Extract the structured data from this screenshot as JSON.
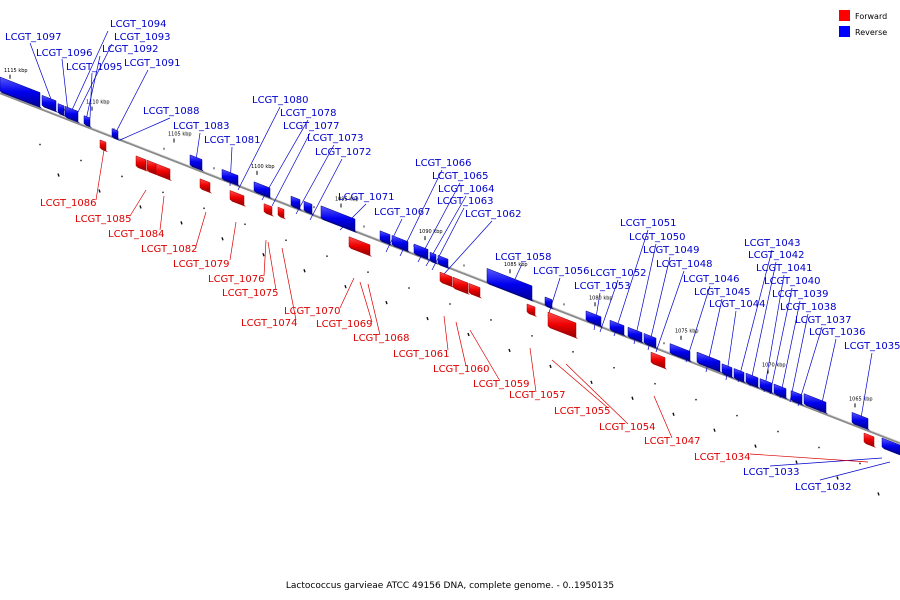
{
  "caption": "Lactococcus garvieae ATCC 49156 DNA, complete genome. - 0..1950135",
  "legend": [
    {
      "label": "Forward",
      "color": "#ff0000"
    },
    {
      "label": "Reverse",
      "color": "#0000ff"
    }
  ],
  "scale_labels": [
    "1115 kbp",
    "1110 kbp",
    "1105 kbp",
    "1100 kbp",
    "1095 kbp",
    "1090 kbp",
    "1085 kbp",
    "1080 kbp",
    "1075 kbp",
    "1070 kbp",
    "1065 kbp"
  ],
  "reverse_genes": [
    "LCGT_1097",
    "LCGT_1096",
    "LCGT_1095",
    "LCGT_1094",
    "LCGT_1093",
    "LCGT_1092",
    "LCGT_1091",
    "LCGT_1088",
    "LCGT_1083",
    "LCGT_1081",
    "LCGT_1080",
    "LCGT_1078",
    "LCGT_1077",
    "LCGT_1073",
    "LCGT_1072",
    "LCGT_1071",
    "LCGT_1067",
    "LCGT_1066",
    "LCGT_1065",
    "LCGT_1064",
    "LCGT_1063",
    "LCGT_1062",
    "LCGT_1058",
    "LCGT_1056",
    "LCGT_1053",
    "LCGT_1052",
    "LCGT_1051",
    "LCGT_1050",
    "LCGT_1049",
    "LCGT_1048",
    "LCGT_1046",
    "LCGT_1045",
    "LCGT_1044",
    "LCGT_1043",
    "LCGT_1042",
    "LCGT_1041",
    "LCGT_1040",
    "LCGT_1039",
    "LCGT_1038",
    "LCGT_1037",
    "LCGT_1036",
    "LCGT_1035",
    "LCGT_1033",
    "LCGT_1032"
  ],
  "forward_genes": [
    "LCGT_1086",
    "LCGT_1085",
    "LCGT_1084",
    "LCGT_1082",
    "LCGT_1079",
    "LCGT_1076",
    "LCGT_1075",
    "LCGT_1074",
    "LCGT_1070",
    "LCGT_1069",
    "LCGT_1068",
    "LCGT_1061",
    "LCGT_1060",
    "LCGT_1059",
    "LCGT_1057",
    "LCGT_1055",
    "LCGT_1054",
    "LCGT_1047",
    "LCGT_1034"
  ]
}
